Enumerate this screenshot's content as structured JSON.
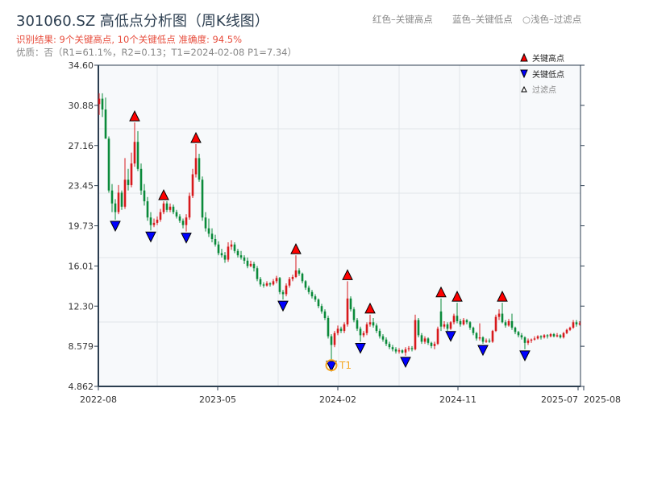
{
  "header": {
    "title": "301060.SZ 高低点分析图（周K线图）",
    "result_line": "识别结果: 9个关键高点, 10个关键低点   准确度: 94.5%",
    "quality_line": "优质：否（R1=61.1%，R2=0.13；T1=2024-02-08 P1=7.34）",
    "legend_red": "红色–关键高点",
    "legend_blue": "蓝色–关键低点",
    "legend_light": "○浅色–过滤点"
  },
  "colors": {
    "up": "#d7191c",
    "down": "#0a8a3a",
    "high_marker": "#ff0000",
    "low_marker": "#0000ff",
    "t1": "#f5a623",
    "plot_bg": "#f7f9fb",
    "axis": "#2c3e50"
  },
  "chart_data": {
    "type": "candlestick",
    "title": "301060.SZ 高低点分析图（周K线图）",
    "ylim": [
      4.862,
      34.6
    ],
    "y_ticks": [
      "34.60",
      "30.88",
      "27.16",
      "23.45",
      "19.73",
      "16.01",
      "12.30",
      "8.579",
      "4.862"
    ],
    "x_ticks": [
      "2022-08",
      "2023-05",
      "2024-02",
      "2024-11",
      "2025-07",
      "2025-08"
    ],
    "grid": true,
    "legend_placement": "top-right",
    "legend": [
      {
        "label": "关键高点",
        "marker": "triangle-up",
        "color": "#ff0000"
      },
      {
        "label": "关键低点",
        "marker": "triangle-down",
        "color": "#0000ff"
      },
      {
        "label": "过滤点",
        "marker": "triangle-up-hollow",
        "color": "#ffffff"
      }
    ],
    "candles_ohlc": [
      [
        31.0,
        32.0,
        30.0,
        31.5
      ],
      [
        31.5,
        32.0,
        29.8,
        30.5
      ],
      [
        30.5,
        31.6,
        27.8,
        27.8
      ],
      [
        27.8,
        28.0,
        22.8,
        23.0
      ],
      [
        23.0,
        23.6,
        21.0,
        21.8
      ],
      [
        21.8,
        22.2,
        20.3,
        21.0
      ],
      [
        21.0,
        23.5,
        20.8,
        22.8
      ],
      [
        22.8,
        23.0,
        21.2,
        21.5
      ],
      [
        21.5,
        26.0,
        21.3,
        24.0
      ],
      [
        24.0,
        25.0,
        23.0,
        23.5
      ],
      [
        23.5,
        26.5,
        23.3,
        25.5
      ],
      [
        25.5,
        29.3,
        25.2,
        27.5
      ],
      [
        27.5,
        28.5,
        24.8,
        25.0
      ],
      [
        25.0,
        25.5,
        22.6,
        23.0
      ],
      [
        23.0,
        23.6,
        21.6,
        22.0
      ],
      [
        22.0,
        22.4,
        20.2,
        20.5
      ],
      [
        20.5,
        21.0,
        19.3,
        19.8
      ],
      [
        19.8,
        20.4,
        19.6,
        20.0
      ],
      [
        20.0,
        20.6,
        19.8,
        20.3
      ],
      [
        20.3,
        21.3,
        20.1,
        21.0
      ],
      [
        21.0,
        22.0,
        20.8,
        21.8
      ],
      [
        21.8,
        22.0,
        21.0,
        21.2
      ],
      [
        21.2,
        21.8,
        21.0,
        21.5
      ],
      [
        21.5,
        21.7,
        20.8,
        21.0
      ],
      [
        21.0,
        21.2,
        20.4,
        20.6
      ],
      [
        20.6,
        20.8,
        20.0,
        20.2
      ],
      [
        20.2,
        20.4,
        19.5,
        19.8
      ],
      [
        19.8,
        20.8,
        19.2,
        20.5
      ],
      [
        20.5,
        22.8,
        20.3,
        22.5
      ],
      [
        22.5,
        25.0,
        22.3,
        24.5
      ],
      [
        24.5,
        27.3,
        24.2,
        26.0
      ],
      [
        26.0,
        26.4,
        23.8,
        24.0
      ],
      [
        24.0,
        24.3,
        20.2,
        20.5
      ],
      [
        20.5,
        21.0,
        19.2,
        19.5
      ],
      [
        19.5,
        20.4,
        18.7,
        19.0
      ],
      [
        19.0,
        19.5,
        18.2,
        18.5
      ],
      [
        18.5,
        18.9,
        17.8,
        18.0
      ],
      [
        18.0,
        18.3,
        17.0,
        17.2
      ],
      [
        17.2,
        17.6,
        16.8,
        17.0
      ],
      [
        17.0,
        17.3,
        16.3,
        16.6
      ],
      [
        16.6,
        18.2,
        16.4,
        17.8
      ],
      [
        17.8,
        18.4,
        17.5,
        18.0
      ],
      [
        18.0,
        18.2,
        17.2,
        17.4
      ],
      [
        17.4,
        17.6,
        16.8,
        17.0
      ],
      [
        17.0,
        17.4,
        16.6,
        16.8
      ],
      [
        16.8,
        17.0,
        16.2,
        16.5
      ],
      [
        16.5,
        16.8,
        15.8,
        16.0
      ],
      [
        16.0,
        16.5,
        15.9,
        16.2
      ],
      [
        16.2,
        16.4,
        15.5,
        15.8
      ],
      [
        15.8,
        16.0,
        14.6,
        14.8
      ],
      [
        14.8,
        15.0,
        14.1,
        14.3
      ],
      [
        14.3,
        14.5,
        14.0,
        14.2
      ],
      [
        14.2,
        14.6,
        14.1,
        14.4
      ],
      [
        14.4,
        14.5,
        14.1,
        14.3
      ],
      [
        14.3,
        14.8,
        14.2,
        14.6
      ],
      [
        14.6,
        15.1,
        14.4,
        14.9
      ],
      [
        14.9,
        15.0,
        13.4,
        13.6
      ],
      [
        13.6,
        13.8,
        12.9,
        13.4
      ],
      [
        13.4,
        14.4,
        13.2,
        14.2
      ],
      [
        14.2,
        15.0,
        14.0,
        14.8
      ],
      [
        14.8,
        15.2,
        14.6,
        15.0
      ],
      [
        15.0,
        17.0,
        14.9,
        15.6
      ],
      [
        15.6,
        15.8,
        15.1,
        15.3
      ],
      [
        15.3,
        15.4,
        14.4,
        14.6
      ],
      [
        14.6,
        14.7,
        13.8,
        14.0
      ],
      [
        14.0,
        14.2,
        13.4,
        13.6
      ],
      [
        13.6,
        13.8,
        13.0,
        13.2
      ],
      [
        13.2,
        13.4,
        12.7,
        12.9
      ],
      [
        12.9,
        13.0,
        12.1,
        12.3
      ],
      [
        12.3,
        12.5,
        11.6,
        11.8
      ],
      [
        11.8,
        12.0,
        11.0,
        11.2
      ],
      [
        11.2,
        11.4,
        9.3,
        9.5
      ],
      [
        9.5,
        9.7,
        7.34,
        8.7
      ],
      [
        8.7,
        10.0,
        8.5,
        9.8
      ],
      [
        9.8,
        10.5,
        9.6,
        10.2
      ],
      [
        10.2,
        10.4,
        9.8,
        10.0
      ],
      [
        10.0,
        10.8,
        9.8,
        10.6
      ],
      [
        10.6,
        14.6,
        10.4,
        13.0
      ],
      [
        13.0,
        13.2,
        11.8,
        12.0
      ],
      [
        12.0,
        12.2,
        10.8,
        11.0
      ],
      [
        11.0,
        11.2,
        10.0,
        10.2
      ],
      [
        10.2,
        10.4,
        9.0,
        9.6
      ],
      [
        9.6,
        10.0,
        9.4,
        9.8
      ],
      [
        9.8,
        10.8,
        9.6,
        10.6
      ],
      [
        10.6,
        11.5,
        10.4,
        10.8
      ],
      [
        10.8,
        11.2,
        10.3,
        10.5
      ],
      [
        10.5,
        10.7,
        9.8,
        10.0
      ],
      [
        10.0,
        10.2,
        9.3,
        9.5
      ],
      [
        9.5,
        9.7,
        9.0,
        9.2
      ],
      [
        9.2,
        9.4,
        8.6,
        8.8
      ],
      [
        8.8,
        9.0,
        8.3,
        8.5
      ],
      [
        8.5,
        8.7,
        8.1,
        8.3
      ],
      [
        8.3,
        8.5,
        7.9,
        8.1
      ],
      [
        8.1,
        8.4,
        7.9,
        8.2
      ],
      [
        8.2,
        8.3,
        7.9,
        8.0
      ],
      [
        8.0,
        8.5,
        7.7,
        8.3
      ],
      [
        8.3,
        8.6,
        8.1,
        8.4
      ],
      [
        8.4,
        8.6,
        8.1,
        8.3
      ],
      [
        8.3,
        11.5,
        8.2,
        11.0
      ],
      [
        11.0,
        11.2,
        9.4,
        9.6
      ],
      [
        9.6,
        9.8,
        8.8,
        9.0
      ],
      [
        9.0,
        9.5,
        8.8,
        9.3
      ],
      [
        9.3,
        9.4,
        8.7,
        8.9
      ],
      [
        8.9,
        9.0,
        8.4,
        8.6
      ],
      [
        8.6,
        9.0,
        8.3,
        8.8
      ],
      [
        8.8,
        10.4,
        8.7,
        10.2
      ],
      [
        11.8,
        13.0,
        10.0,
        10.4
      ],
      [
        10.4,
        10.9,
        10.2,
        10.6
      ],
      [
        10.6,
        10.8,
        10.0,
        10.2
      ],
      [
        10.2,
        10.9,
        10.1,
        10.8
      ],
      [
        10.8,
        11.6,
        10.6,
        11.4
      ],
      [
        11.4,
        12.6,
        10.7,
        10.9
      ],
      [
        10.9,
        11.1,
        10.4,
        10.6
      ],
      [
        10.6,
        11.2,
        10.5,
        11.0
      ],
      [
        11.0,
        11.1,
        10.6,
        10.8
      ],
      [
        10.8,
        10.9,
        10.1,
        10.3
      ],
      [
        10.3,
        10.4,
        9.6,
        9.8
      ],
      [
        9.8,
        9.9,
        9.1,
        9.3
      ],
      [
        9.3,
        10.7,
        9.1,
        9.4
      ],
      [
        9.4,
        9.5,
        8.8,
        9.0
      ],
      [
        9.0,
        9.3,
        8.9,
        9.1
      ],
      [
        9.1,
        9.3,
        8.9,
        9.0
      ],
      [
        9.0,
        10.1,
        8.9,
        10.0
      ],
      [
        10.0,
        11.5,
        9.9,
        11.3
      ],
      [
        11.3,
        12.0,
        11.0,
        11.6
      ],
      [
        11.6,
        12.6,
        10.7,
        10.8
      ],
      [
        10.8,
        11.0,
        10.3,
        10.5
      ],
      [
        10.5,
        11.1,
        10.4,
        10.9
      ],
      [
        10.9,
        11.6,
        10.1,
        10.3
      ],
      [
        10.3,
        10.4,
        9.7,
        9.9
      ],
      [
        9.9,
        10.0,
        9.4,
        9.6
      ],
      [
        9.6,
        9.8,
        9.2,
        9.4
      ],
      [
        9.4,
        9.5,
        8.3,
        8.9
      ],
      [
        8.9,
        9.3,
        8.7,
        9.1
      ],
      [
        9.1,
        9.3,
        8.9,
        9.2
      ],
      [
        9.2,
        9.5,
        9.1,
        9.3
      ],
      [
        9.3,
        9.6,
        9.2,
        9.5
      ],
      [
        9.5,
        9.6,
        9.2,
        9.4
      ],
      [
        9.4,
        9.7,
        9.3,
        9.6
      ],
      [
        9.6,
        9.7,
        9.3,
        9.5
      ],
      [
        9.5,
        9.8,
        9.4,
        9.7
      ],
      [
        9.7,
        9.8,
        9.4,
        9.5
      ],
      [
        9.5,
        9.8,
        9.4,
        9.6
      ],
      [
        9.6,
        9.7,
        9.3,
        9.4
      ],
      [
        9.4,
        9.9,
        9.3,
        9.8
      ],
      [
        9.8,
        10.2,
        9.7,
        10.1
      ],
      [
        10.1,
        10.4,
        10.0,
        10.3
      ],
      [
        10.3,
        11.0,
        10.2,
        10.8
      ],
      [
        10.8,
        11.0,
        10.4,
        10.6
      ],
      [
        10.6,
        10.9,
        10.5,
        10.7
      ]
    ],
    "key_high_indices": [
      11,
      20,
      30,
      61,
      77,
      84,
      106,
      111,
      125
    ],
    "key_low_indices": [
      5,
      16,
      27,
      57,
      72,
      81,
      95,
      109,
      119,
      132
    ],
    "t1": {
      "label": "T1",
      "date": "2024-02-08",
      "price": 7.34,
      "index": 72
    }
  }
}
